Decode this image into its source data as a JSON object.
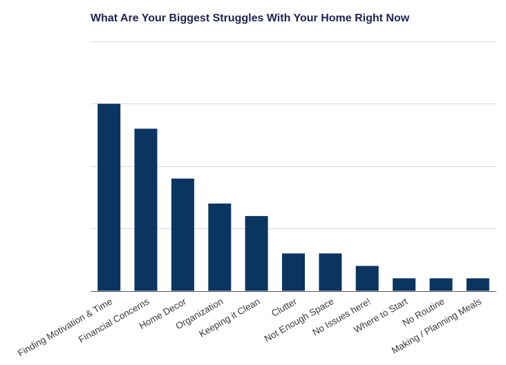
{
  "chart_data": {
    "type": "bar",
    "title": "What Are Your Biggest Struggles With Your Home Right Now",
    "categories": [
      "Finding Motivation & Time",
      "Financial Concerns",
      "Home Decor",
      "Organization",
      "Keeping it Clean",
      "Clutter",
      "Not Enough Space",
      "No Issues here!",
      "Where to Start",
      "No Routine",
      "Making / Planning Meals"
    ],
    "values": [
      15,
      13,
      9,
      7,
      6,
      3,
      3,
      2,
      1,
      1,
      1
    ],
    "ylim": [
      0,
      20
    ],
    "gridlines": [
      0,
      5,
      10,
      15,
      20
    ],
    "grid": true,
    "y_tick_labels_shown": false,
    "bar_color": "#0b3561",
    "gridline_color": "#d9d9d9"
  }
}
